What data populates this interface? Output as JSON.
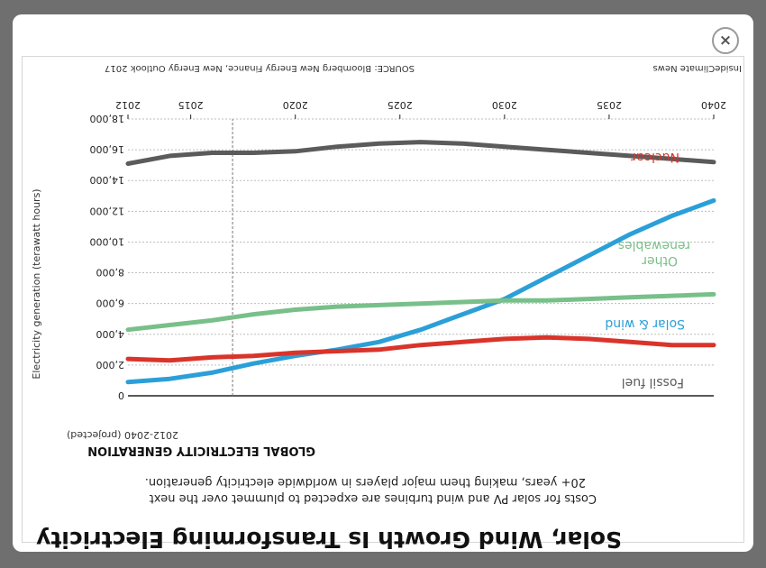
{
  "header": {
    "source": "SOURCE: Bloomberg New Energy Finance, New Energy Outlook 2017",
    "publisher": "InsideClimate News",
    "close_icon": "close-icon",
    "close_label": "×"
  },
  "footer": {
    "subtitle_line1": "GLOBAL ELECTRICITY GENERATION",
    "subtitle_line2": "2012-2040 (projected)",
    "description_line1": "Costs for solar PV and wind turbines are expected to plummet over the next",
    "description_line2": "20+ years, making them major players in worldwide electricity generation.",
    "headline": "Solar, Wind Growth Is Transforming Electricity"
  },
  "chart_data": {
    "type": "line",
    "title": "Solar, Wind Growth Is Transforming Electricity",
    "subtitle": "GLOBAL ELECTRICITY GENERATION",
    "ylabel": "Electricity generation (terawatt hours)",
    "xlim": [
      2012,
      2040
    ],
    "ylim": [
      0,
      18000
    ],
    "x_ticks": [
      2012,
      2015,
      2020,
      2025,
      2030,
      2035,
      2040
    ],
    "y_ticks": [
      0,
      2000,
      4000,
      6000,
      8000,
      10000,
      12000,
      14000,
      16000,
      18000
    ],
    "y_tick_labels": [
      "0",
      "2,000",
      "4,000",
      "6,000",
      "8,000",
      "10,000",
      "12,000",
      "14,000",
      "16,000",
      "18,000"
    ],
    "projection_start": 2017,
    "grid": true,
    "orientation": "rotated-180",
    "colors": {
      "nuclear": "#d9342b",
      "solar_wind": "#2b9fd8",
      "other": "#79bf8a",
      "fossil": "#5b5b5b",
      "grid": "#bdbdbd"
    },
    "x": [
      2012,
      2014,
      2016,
      2018,
      2020,
      2022,
      2024,
      2026,
      2028,
      2030,
      2032,
      2034,
      2036,
      2038,
      2040
    ],
    "series": [
      {
        "name": "Fossil fuel",
        "color": "#5b5b5b",
        "values": [
          15100,
          15600,
          15800,
          15800,
          15900,
          16200,
          16400,
          16500,
          16400,
          16200,
          16000,
          15800,
          15600,
          15400,
          15200
        ]
      },
      {
        "name": "Solar & wind",
        "color": "#2b9fd8",
        "values": [
          900,
          1100,
          1500,
          2100,
          2600,
          3000,
          3500,
          4300,
          5300,
          6300,
          7700,
          9100,
          10500,
          11700,
          12700
        ]
      },
      {
        "name": "Other renewables",
        "color": "#79bf8a",
        "values": [
          4300,
          4600,
          4900,
          5300,
          5600,
          5800,
          5900,
          6000,
          6100,
          6200,
          6200,
          6300,
          6400,
          6500,
          6600
        ]
      },
      {
        "name": "Nuclear",
        "color": "#d9342b",
        "values": [
          2400,
          2300,
          2500,
          2600,
          2800,
          2900,
          3000,
          3300,
          3500,
          3700,
          3800,
          3700,
          3500,
          3300,
          3300
        ]
      }
    ]
  }
}
